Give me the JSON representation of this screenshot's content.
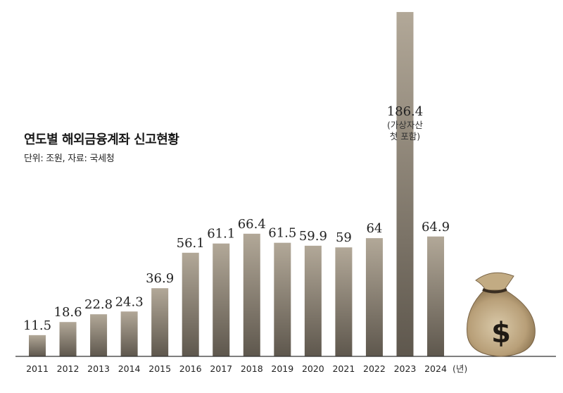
{
  "chart_data": {
    "type": "bar",
    "title": "연도별 해외금융계좌 신고현황",
    "subtitle": "단위: 조원, 자료: 국세청",
    "categories": [
      "2011",
      "2012",
      "2013",
      "2014",
      "2015",
      "2016",
      "2017",
      "2018",
      "2019",
      "2020",
      "2021",
      "2022",
      "2023",
      "2024"
    ],
    "values": [
      11.5,
      18.6,
      22.8,
      24.3,
      36.9,
      56.1,
      61.1,
      66.4,
      61.5,
      59.9,
      59,
      64,
      186.4,
      64.9
    ],
    "value_labels": [
      "11.5",
      "18.6",
      "22.8",
      "24.3",
      "36.9",
      "56.1",
      "61.1",
      "66.4",
      "61.5",
      "59.9",
      "59",
      "64",
      "186.4",
      "64.9"
    ],
    "x_unit": "(년)",
    "annotation": {
      "category": "2023",
      "lines": [
        "(가상자산",
        "첫 포함)"
      ]
    },
    "legend": "none",
    "grid": false,
    "colors": {
      "bar_top": "#b2a898",
      "bar_bottom": "#5e574d",
      "baseline": "#333333"
    },
    "illustration": "money-bag-icon"
  }
}
